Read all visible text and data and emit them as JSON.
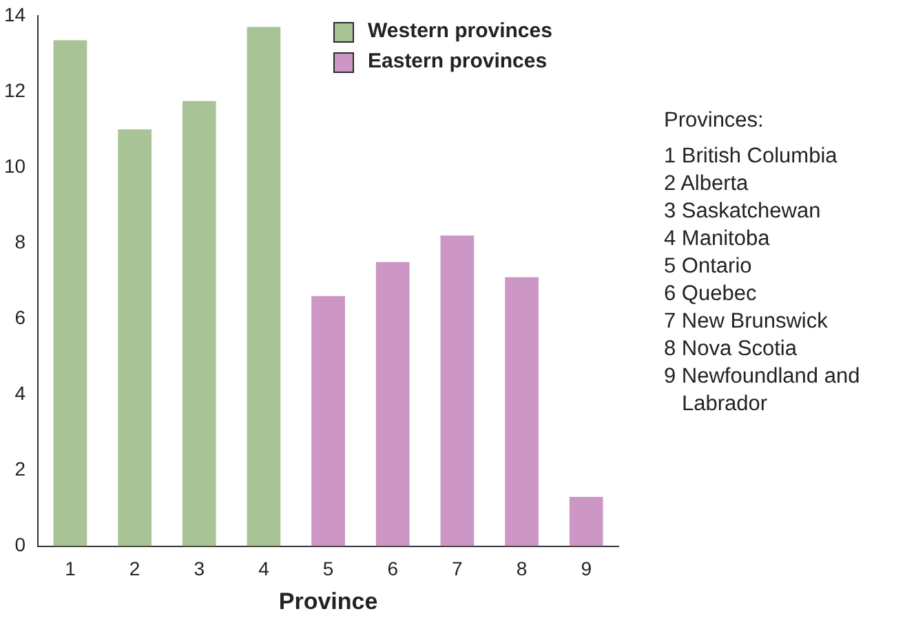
{
  "chart_data": {
    "type": "bar",
    "xlabel": "Province",
    "categories": [
      "1",
      "2",
      "3",
      "4",
      "5",
      "6",
      "7",
      "8",
      "9"
    ],
    "series": [
      {
        "name": "Western provinces",
        "color": "#a8c497",
        "values": [
          13.35,
          11.0,
          11.75,
          13.7,
          null,
          null,
          null,
          null,
          null
        ]
      },
      {
        "name": "Eastern provinces",
        "color": "#cc96c5",
        "values": [
          null,
          null,
          null,
          null,
          6.6,
          7.5,
          8.2,
          7.1,
          1.3
        ]
      }
    ],
    "ylim": [
      0,
      14
    ],
    "yticks": [
      0,
      2,
      4,
      6,
      8,
      10,
      12,
      14
    ],
    "grid": false,
    "legend": "top right",
    "annotations": [
      "Provinces:",
      "1 British Columbia",
      "2 Alberta",
      "3 Saskatchewan",
      "4 Manitoba",
      "5 Ontario",
      "6 Quebec",
      "7 New Brunswick",
      "8 Nova Scotia",
      "9 Newfoundland and Labrador"
    ]
  }
}
